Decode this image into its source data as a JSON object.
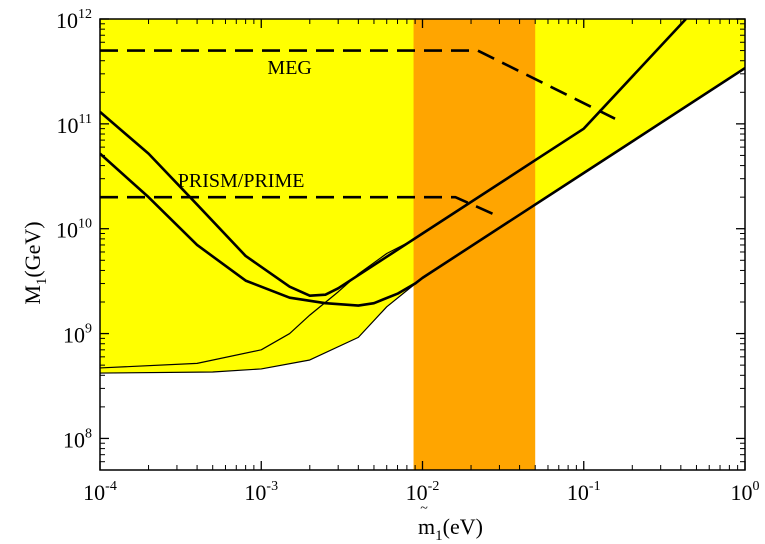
{
  "chart_data": {
    "type": "line",
    "title": "",
    "xlabel": {
      "base": "m",
      "sub": "1",
      "unit": "(eV)",
      "tilde": true
    },
    "ylabel": {
      "base": "M",
      "sub": "1",
      "unit": "(GeV)"
    },
    "xscale": "log",
    "yscale": "log",
    "xlim": [
      0.0001,
      1
    ],
    "ylim": [
      50000000,
      1000000000000
    ],
    "grid": false,
    "legend": "none",
    "x_ticks": [
      {
        "value": 0.0001,
        "base": "10",
        "exp": "-4"
      },
      {
        "value": 0.001,
        "base": "10",
        "exp": "-3"
      },
      {
        "value": 0.01,
        "base": "10",
        "exp": "-2"
      },
      {
        "value": 0.1,
        "base": "10",
        "exp": "-1"
      },
      {
        "value": 1,
        "base": "10",
        "exp": "0"
      }
    ],
    "y_ticks": [
      {
        "value": 100000000,
        "base": "10",
        "exp": "8"
      },
      {
        "value": 1000000000,
        "base": "10",
        "exp": "9"
      },
      {
        "value": 10000000000,
        "base": "10",
        "exp": "10"
      },
      {
        "value": 100000000000,
        "base": "10",
        "exp": "11"
      },
      {
        "value": 1000000000000,
        "base": "10",
        "exp": "12"
      }
    ],
    "colors": {
      "allowed_region": "#ffff00",
      "highlight_band": "#ffa500",
      "line": "#000000"
    },
    "regions": [
      {
        "kind": "allowed-region",
        "color": "#ffff00",
        "points": [
          [
            0.0001,
            420000000
          ],
          [
            0.0005,
            430000000
          ],
          [
            0.001,
            460000000
          ],
          [
            0.002,
            560000000
          ],
          [
            0.004,
            920000000
          ],
          [
            0.006,
            1800000000
          ],
          [
            0.01,
            3400000000
          ],
          [
            0.1,
            34000000000
          ],
          [
            1,
            340000000000
          ],
          [
            1,
            1000000000000
          ],
          [
            0.0001,
            1000000000000
          ]
        ]
      },
      {
        "kind": "vertical-band",
        "color": "#ffa500",
        "x_range": [
          0.0088,
          0.05
        ]
      }
    ],
    "series": [
      {
        "style": "solid-thin",
        "x": [
          0.0001,
          0.0005,
          0.001,
          0.002,
          0.004,
          0.006,
          0.01,
          0.1,
          1
        ],
        "y": [
          420000000,
          430000000,
          460000000,
          560000000,
          920000000,
          1800000000,
          3400000000,
          34000000000,
          340000000000
        ]
      },
      {
        "style": "solid-thin",
        "x": [
          0.0001,
          0.0004,
          0.001,
          0.0015,
          0.002,
          0.003,
          0.004,
          0.006,
          0.009
        ],
        "y": [
          470000000,
          520000000,
          700000000,
          1000000000,
          1500000000,
          2500000000,
          3700000000,
          5800000000,
          8000000000
        ]
      },
      {
        "style": "solid-thick",
        "x": [
          0.0001,
          0.0002,
          0.0004,
          0.0008,
          0.0015,
          0.002,
          0.0025,
          0.003,
          0.005,
          0.008,
          0.01,
          0.05,
          0.1,
          0.43
        ],
        "y": [
          130000000000,
          52000000000,
          17000000000,
          5500000000,
          2800000000,
          2300000000,
          2350000000,
          2700000000,
          4500000000,
          7200000000,
          9000000000,
          45000000000,
          90000000000,
          1000000000000
        ]
      },
      {
        "style": "solid-thick",
        "x": [
          0.0001,
          0.0002,
          0.0004,
          0.0008,
          0.0015,
          0.0025,
          0.004,
          0.005,
          0.007,
          0.009,
          0.01,
          0.1,
          1
        ],
        "y": [
          52000000000,
          20000000000,
          7000000000,
          3200000000,
          2200000000,
          1950000000,
          1850000000,
          1950000000,
          2400000000,
          3000000000,
          3400000000,
          34000000000,
          340000000000
        ]
      },
      {
        "style": "dashed",
        "label": "MEG",
        "x": [
          0.0001,
          0.022,
          0.16
        ],
        "y": [
          500000000000,
          500000000000,
          110000000000
        ]
      },
      {
        "style": "dashed",
        "label": "PRISM/PRIME",
        "x": [
          0.0001,
          0.016,
          0.03
        ],
        "y": [
          20000000000,
          20000000000,
          13000000000
        ]
      }
    ],
    "annotations": [
      {
        "text": "MEG",
        "x": 0.0015,
        "y": 300000000000
      },
      {
        "text": "PRISM/PRIME",
        "x": 0.00075,
        "y": 25000000000
      }
    ]
  }
}
